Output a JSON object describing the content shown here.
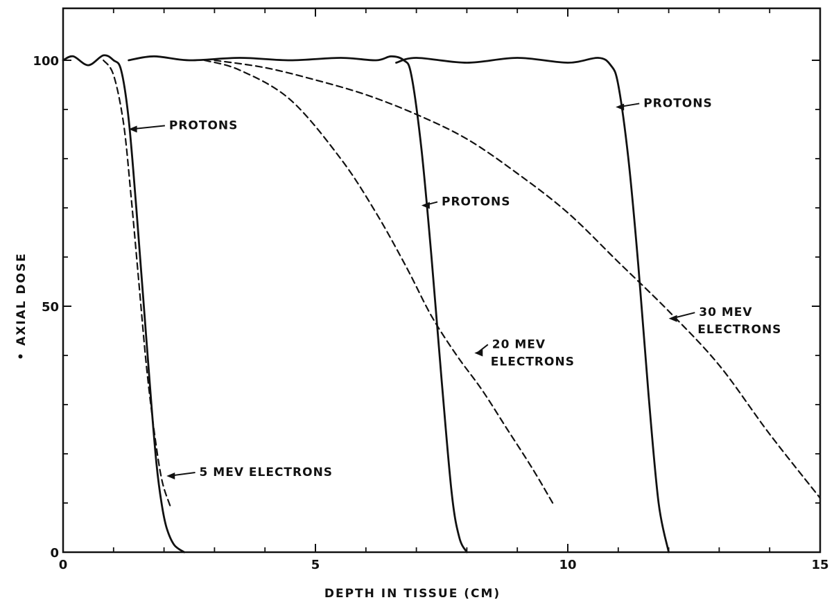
{
  "chart_data": {
    "type": "line",
    "title": "",
    "xlabel": "DEPTH IN TISSUE (CM)",
    "ylabel": "• AXIAL DOSE",
    "xlim": [
      0,
      15
    ],
    "ylim": [
      0,
      105
    ],
    "x_ticks": [
      0,
      5,
      10,
      15
    ],
    "x_minor_ticks": [
      1,
      2,
      3,
      4,
      6,
      7,
      8,
      9,
      11,
      12,
      13,
      14
    ],
    "y_ticks": [
      0,
      50,
      100
    ],
    "y_minor_ticks": [
      10,
      20,
      30,
      40,
      60,
      70,
      80,
      90
    ],
    "grid": false,
    "legend": "none",
    "series": [
      {
        "style": "solid",
        "x": [
          0,
          0.2,
          0.5,
          0.8,
          1.0,
          1.15,
          1.3,
          1.45,
          1.6,
          1.75,
          1.85,
          1.95,
          2.05,
          2.2,
          2.4
        ],
        "y": [
          100,
          100.8,
          99,
          101,
          100,
          98,
          88,
          70,
          50,
          30,
          18,
          10,
          5,
          1.5,
          0
        ]
      },
      {
        "style": "dashed",
        "x": [
          0.8,
          1.0,
          1.2,
          1.35,
          1.5,
          1.65,
          1.8,
          1.95,
          2.1,
          2.15
        ],
        "y": [
          100,
          97,
          87,
          72,
          55,
          38,
          25,
          15,
          10,
          9
        ]
      },
      {
        "style": "solid",
        "x": [
          1.3,
          1.8,
          2.5,
          3.5,
          4.5,
          5.5,
          6.2,
          6.5,
          6.75,
          6.9,
          7.1,
          7.3,
          7.5,
          7.7,
          7.85,
          8.0
        ],
        "y": [
          100,
          100.8,
          100,
          100.5,
          100,
          100.5,
          100,
          100.8,
          100,
          97,
          82,
          60,
          35,
          12,
          3,
          0
        ]
      },
      {
        "style": "dashed",
        "x": [
          2.8,
          3.5,
          4.5,
          5.5,
          6.2,
          6.8,
          7.3,
          7.8,
          8.3,
          8.8,
          9.3,
          9.7
        ],
        "y": [
          100,
          98,
          92,
          80,
          69,
          58,
          48,
          40,
          33,
          25,
          17,
          10
        ]
      },
      {
        "style": "solid",
        "x": [
          6.6,
          7.0,
          8.0,
          9.0,
          10.0,
          10.6,
          10.85,
          11.0,
          11.2,
          11.4,
          11.6,
          11.8,
          12.0
        ],
        "y": [
          99.5,
          100.5,
          99.5,
          100.5,
          99.5,
          100.5,
          99,
          95,
          80,
          58,
          32,
          10,
          0
        ]
      },
      {
        "style": "dashed",
        "x": [
          3.0,
          4.0,
          5.0,
          6.0,
          7.0,
          8.0,
          9.0,
          10.0,
          11.0,
          12.0,
          13.0,
          14.0,
          15.0
        ],
        "y": [
          100,
          98.5,
          96,
          93,
          89,
          84,
          77,
          69,
          59,
          49,
          38,
          24,
          11
        ]
      }
    ],
    "annotations": [
      {
        "text": "PROTONS",
        "x": 1.3,
        "y": 86,
        "tx": 2.1,
        "ty": 86
      },
      {
        "text": "5 MEV ELECTRONS",
        "x": 2.05,
        "y": 15.5,
        "tx": 2.7,
        "ty": 15.5
      },
      {
        "text": "PROTONS",
        "x": 7.1,
        "y": 70.5,
        "tx": 7.5,
        "ty": 70.5
      },
      {
        "text": "20 MEV",
        "x": 8.15,
        "y": 40.5,
        "tx": 8.5,
        "ty": 41.5,
        "line2": "ELECTRONS"
      },
      {
        "text": "PROTONS",
        "x": 10.95,
        "y": 90.5,
        "tx": 11.5,
        "ty": 90.5
      },
      {
        "text": "30 MEV",
        "x": 12.0,
        "y": 47.5,
        "tx": 12.6,
        "ty": 48,
        "line2": "ELECTRONS"
      }
    ]
  }
}
